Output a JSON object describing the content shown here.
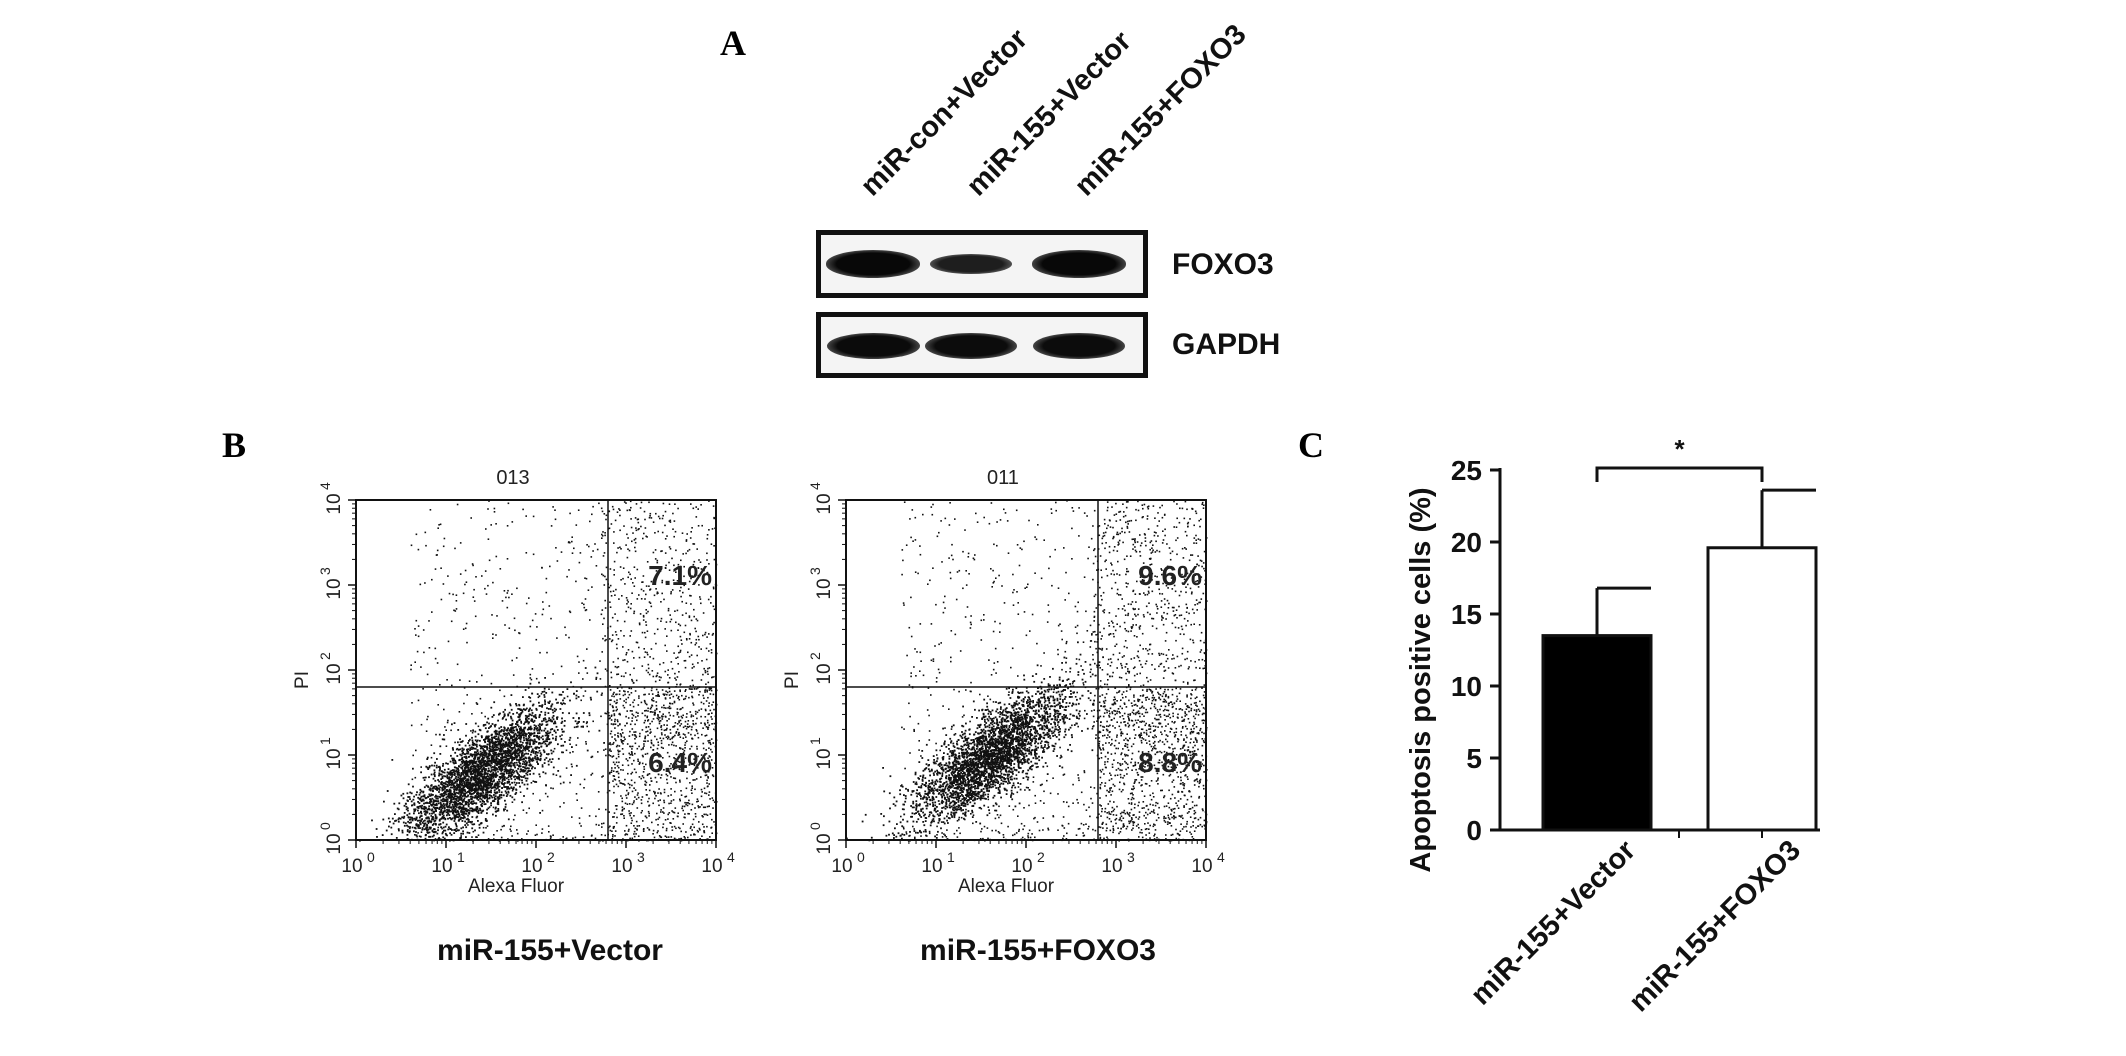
{
  "panels": {
    "a_letter": "A",
    "b_letter": "B",
    "c_letter": "C"
  },
  "western_blot": {
    "lanes": [
      "miR-con+Vector",
      "miR-155+Vector",
      "miR-155+FOXO3"
    ],
    "rows": [
      {
        "label": "FOXO3",
        "band_intensity": [
          0.95,
          0.55,
          0.95
        ]
      },
      {
        "label": "GAPDH",
        "band_intensity": [
          0.9,
          0.88,
          0.88
        ]
      }
    ]
  },
  "flow_cytometry": [
    {
      "sample_id": "013",
      "caption": "miR-155+Vector",
      "upper_right_pct": "7.1%",
      "lower_right_pct": "6.4%",
      "ylabel": "PI",
      "xlabel": "Alexa Fluor",
      "cluster_center_log": [
        1.4,
        0.8
      ]
    },
    {
      "sample_id": "011",
      "caption": "miR-155+FOXO3",
      "upper_right_pct": "9.6%",
      "lower_right_pct": "8.8%",
      "ylabel": "PI",
      "xlabel": "Alexa Fluor",
      "cluster_center_log": [
        1.6,
        1.0
      ]
    }
  ],
  "flow_axis": {
    "ticks": [
      "10",
      "10",
      "10",
      "10",
      "10"
    ],
    "exponents": [
      "0",
      "1",
      "2",
      "3",
      "4"
    ],
    "gate_x_log": 2.8,
    "gate_y_log": 1.8
  },
  "chart_data": {
    "type": "bar",
    "categories": [
      "miR-155+Vector",
      "miR-155+FOXO3"
    ],
    "series": [
      {
        "values": [
          13.5,
          19.6
        ],
        "errors": [
          3.3,
          4.0
        ]
      }
    ],
    "bar_colors": [
      "#000000",
      "#ffffff"
    ],
    "xlabel": "",
    "ylabel": "Apoptosis positive cells (%)",
    "ylim": [
      0,
      25
    ],
    "yticks": [
      "0",
      "5",
      "10",
      "15",
      "20",
      "25"
    ],
    "significance": "*",
    "grid": false
  }
}
